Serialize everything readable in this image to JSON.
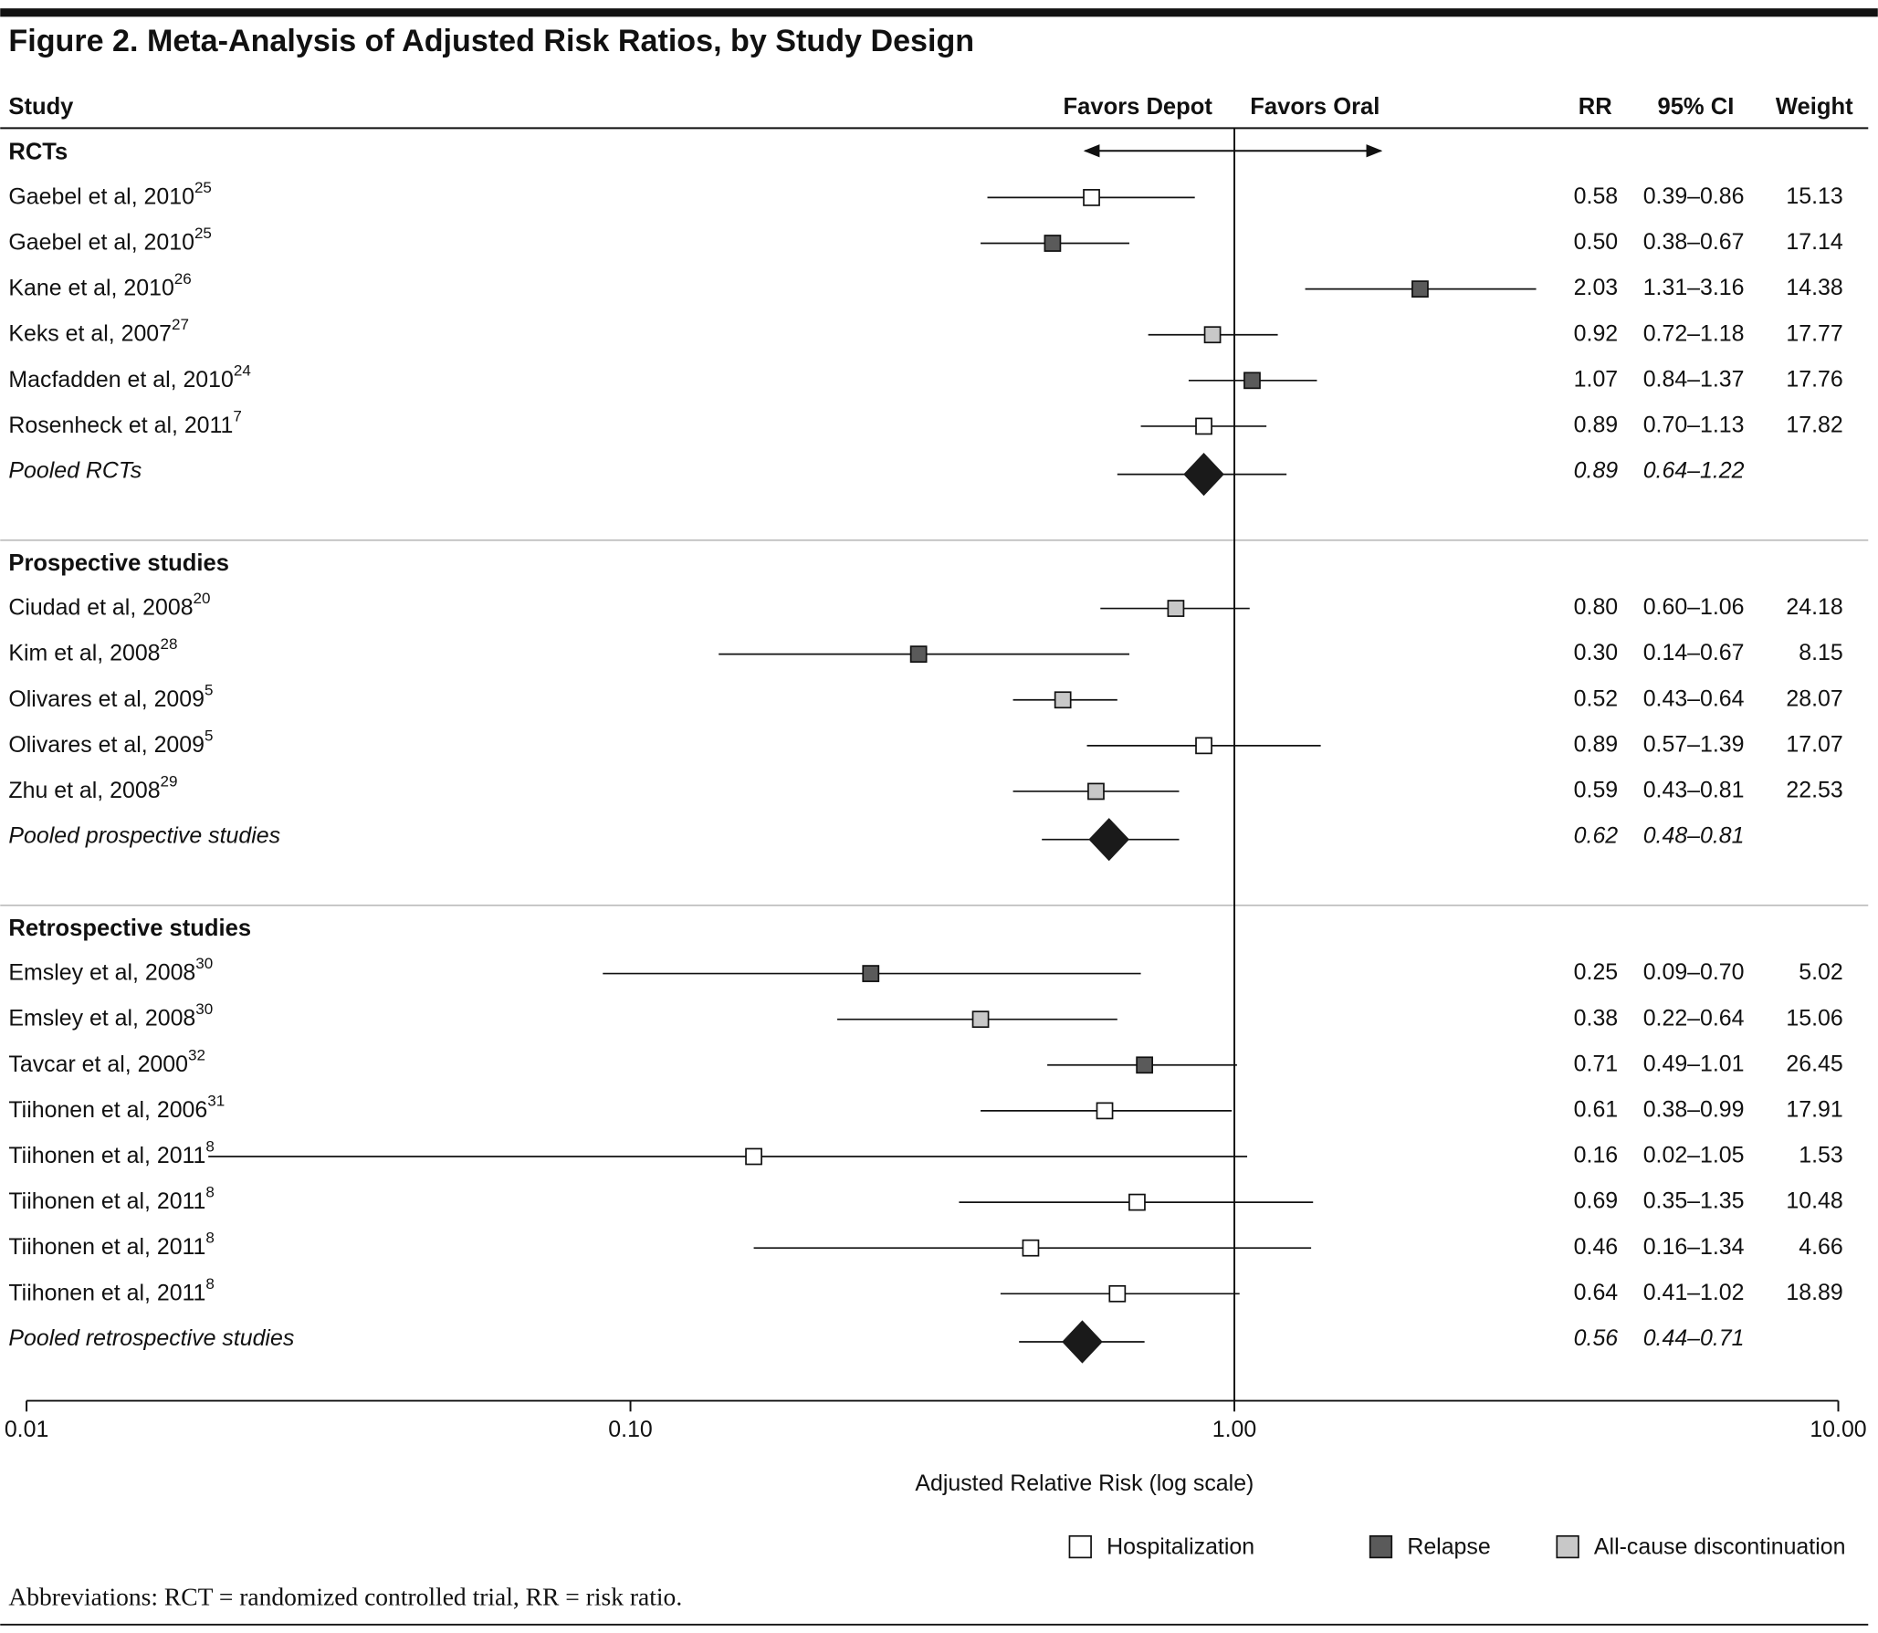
{
  "chart_data": {
    "type": "forest",
    "title": "Figure 2. Meta-Analysis of Adjusted Risk Ratios, by Study Design",
    "columns": {
      "study": "Study",
      "rr": "RR",
      "ci": "95% CI",
      "weight": "Weight"
    },
    "favors_left": "Favors Depot",
    "favors_right": "Favors Oral",
    "xlabel": "Adjusted Relative Risk (log scale)",
    "log_scale": true,
    "xlim": [
      0.01,
      10
    ],
    "reference": 1,
    "xticks": [
      0.01,
      {
        "value": 0.1,
        "label": "0.10"
      },
      {
        "value": 1,
        "label": "1.00"
      },
      {
        "value": 10,
        "label": "10.00"
      }
    ],
    "legend": [
      {
        "name": "Hospitalization",
        "color": "#ffffff"
      },
      {
        "name": "Relapse",
        "color": "#5a5a5a"
      },
      {
        "name": "All-cause discontinuation",
        "color": "#c8c8c8"
      }
    ],
    "groups": [
      {
        "name": "RCTs",
        "studies": [
          {
            "study": "Gaebel et al, 2010",
            "ref": "25",
            "color": "#ffffff",
            "rr": 0.58,
            "rr_label": "0.58",
            "ci_low": 0.39,
            "ci_high": 0.86,
            "ci_label": "0.39–0.86",
            "weight": 15.13
          },
          {
            "study": "Gaebel et al, 2010",
            "ref": "25",
            "color": "#5a5a5a",
            "rr": 0.5,
            "rr_label": "0.50",
            "ci_low": 0.38,
            "ci_high": 0.67,
            "ci_label": "0.38–0.67",
            "weight": 17.14
          },
          {
            "study": "Kane et al, 2010",
            "ref": "26",
            "color": "#5a5a5a",
            "rr": 2.03,
            "rr_label": "2.03",
            "ci_low": 1.31,
            "ci_high": 3.16,
            "ci_label": "1.31–3.16",
            "weight": 14.38
          },
          {
            "study": "Keks et al, 2007",
            "ref": "27",
            "color": "#c8c8c8",
            "rr": 0.92,
            "rr_label": "0.92",
            "ci_low": 0.72,
            "ci_high": 1.18,
            "ci_label": "0.72–1.18",
            "weight": 17.77
          },
          {
            "study": "Macfadden et al, 2010",
            "ref": "24",
            "color": "#5a5a5a",
            "rr": 1.07,
            "rr_label": "1.07",
            "ci_low": 0.84,
            "ci_high": 1.37,
            "ci_label": "0.84–1.37",
            "weight": 17.76
          },
          {
            "study": "Rosenheck et al, 2011",
            "ref": "7",
            "color": "#ffffff",
            "rr": 0.89,
            "rr_label": "0.89",
            "ci_low": 0.7,
            "ci_high": 1.13,
            "ci_label": "0.70–1.13",
            "weight": 17.82
          }
        ],
        "pooled": {
          "name": "Pooled RCTs",
          "rr": 0.89,
          "rr_label": "0.89",
          "ci_low": 0.64,
          "ci_high": 1.22,
          "ci_label": "0.64–1.22"
        }
      },
      {
        "name": "Prospective studies",
        "studies": [
          {
            "study": "Ciudad et al, 2008",
            "ref": "20",
            "color": "#c8c8c8",
            "rr": 0.8,
            "rr_label": "0.80",
            "ci_low": 0.6,
            "ci_high": 1.06,
            "ci_label": "0.60–1.06",
            "weight": 24.18
          },
          {
            "study": "Kim et al, 2008",
            "ref": "28",
            "color": "#5a5a5a",
            "rr": 0.3,
            "rr_label": "0.30",
            "ci_low": 0.14,
            "ci_high": 0.67,
            "ci_label": "0.14–0.67",
            "weight": 8.15
          },
          {
            "study": "Olivares et al, 2009",
            "ref": "5",
            "color": "#c8c8c8",
            "rr": 0.52,
            "rr_label": "0.52",
            "ci_low": 0.43,
            "ci_high": 0.64,
            "ci_label": "0.43–0.64",
            "weight": 28.07
          },
          {
            "study": "Olivares et al, 2009",
            "ref": "5",
            "color": "#ffffff",
            "rr": 0.89,
            "rr_label": "0.89",
            "ci_low": 0.57,
            "ci_high": 1.39,
            "ci_label": "0.57–1.39",
            "weight": 17.07
          },
          {
            "study": "Zhu et al, 2008",
            "ref": "29",
            "color": "#c8c8c8",
            "rr": 0.59,
            "rr_label": "0.59",
            "ci_low": 0.43,
            "ci_high": 0.81,
            "ci_label": "0.43–0.81",
            "weight": 22.53
          }
        ],
        "pooled": {
          "name": "Pooled prospective studies",
          "rr": 0.62,
          "rr_label": "0.62",
          "ci_low": 0.48,
          "ci_high": 0.81,
          "ci_label": "0.48–0.81"
        }
      },
      {
        "name": "Retrospective studies",
        "studies": [
          {
            "study": "Emsley et al, 2008",
            "ref": "30",
            "color": "#5a5a5a",
            "rr": 0.25,
            "rr_label": "0.25",
            "ci_low": 0.09,
            "ci_high": 0.7,
            "ci_label": "0.09–0.70",
            "weight": 5.02
          },
          {
            "study": "Emsley et al, 2008",
            "ref": "30",
            "color": "#c8c8c8",
            "rr": 0.38,
            "rr_label": "0.38",
            "ci_low": 0.22,
            "ci_high": 0.64,
            "ci_label": "0.22–0.64",
            "weight": 15.06
          },
          {
            "study": "Tavcar et al, 2000",
            "ref": "32",
            "color": "#5a5a5a",
            "rr": 0.71,
            "rr_label": "0.71",
            "ci_low": 0.49,
            "ci_high": 1.01,
            "ci_label": "0.49–1.01",
            "weight": 26.45
          },
          {
            "study": "Tiihonen et al, 2006",
            "ref": "31",
            "color": "#ffffff",
            "rr": 0.61,
            "rr_label": "0.61",
            "ci_low": 0.38,
            "ci_high": 0.99,
            "ci_label": "0.38–0.99",
            "weight": 17.91
          },
          {
            "study": "Tiihonen et al, 2011",
            "ref": "8",
            "color": "#ffffff",
            "rr": 0.16,
            "rr_label": "0.16",
            "ci_low": 0.02,
            "ci_high": 1.05,
            "ci_label": "0.02–1.05",
            "weight": 1.53
          },
          {
            "study": "Tiihonen et al, 2011",
            "ref": "8",
            "color": "#ffffff",
            "rr": 0.69,
            "rr_label": "0.69",
            "ci_low": 0.35,
            "ci_high": 1.35,
            "ci_label": "0.35–1.35",
            "weight": 10.48
          },
          {
            "study": "Tiihonen et al, 2011",
            "ref": "8",
            "color": "#ffffff",
            "rr": 0.46,
            "rr_label": "0.46",
            "ci_low": 0.16,
            "ci_high": 1.34,
            "ci_label": "0.16–1.34",
            "weight": 4.66
          },
          {
            "study": "Tiihonen et al, 2011",
            "ref": "8",
            "color": "#ffffff",
            "rr": 0.64,
            "rr_label": "0.64",
            "ci_low": 0.41,
            "ci_high": 1.02,
            "ci_label": "0.41–1.02",
            "weight": 18.89
          }
        ],
        "pooled": {
          "name": "Pooled retrospective studies",
          "rr": 0.56,
          "rr_label": "0.56",
          "ci_low": 0.44,
          "ci_high": 0.71,
          "ci_label": "0.44–0.71"
        }
      }
    ],
    "footnote": "Abbreviations: RCT = randomized controlled trial, RR = risk ratio."
  }
}
